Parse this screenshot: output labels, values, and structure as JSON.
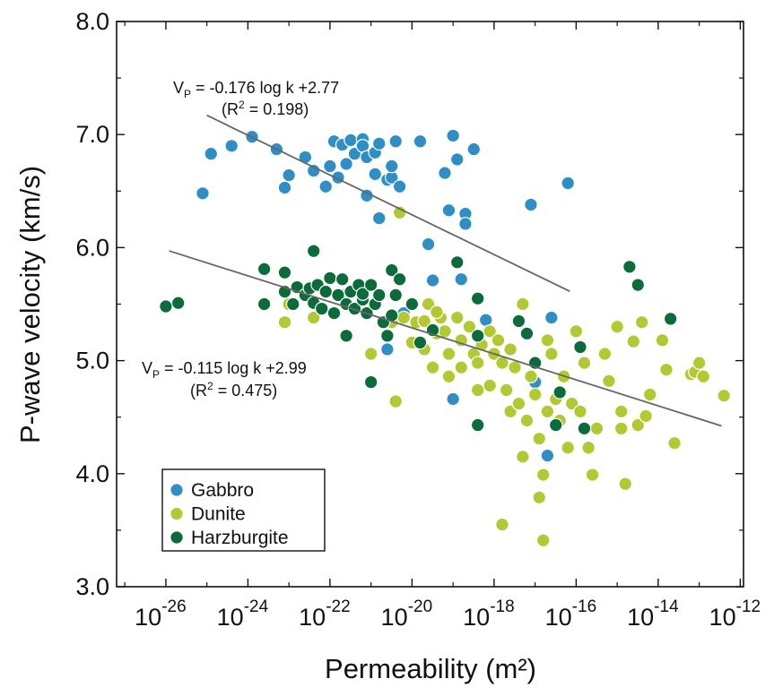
{
  "chart_data": {
    "type": "scatter",
    "x_label": "Permeability (m²)",
    "y_label": "P-wave velocity (km/s)",
    "x_scale": "log",
    "xlim": [
      6.3e-28,
      1.2e-12
    ],
    "ylim": [
      3.0,
      8.0
    ],
    "xticks": [
      {
        "value": 1e-26,
        "label": "10",
        "exponent": "-26"
      },
      {
        "value": 1e-24,
        "label": "10",
        "exponent": "-24"
      },
      {
        "value": 1e-22,
        "label": "10",
        "exponent": "-22"
      },
      {
        "value": 1e-20,
        "label": "10",
        "exponent": "-20"
      },
      {
        "value": 1e-18,
        "label": "10",
        "exponent": "-18"
      },
      {
        "value": 1e-16,
        "label": "10",
        "exponent": "-16"
      },
      {
        "value": 1e-14,
        "label": "10",
        "exponent": "-14"
      },
      {
        "value": 1e-12,
        "label": "10",
        "exponent": "-12"
      }
    ],
    "xminorticks": [
      1e-27,
      1e-25,
      1e-23,
      1e-21,
      1e-19,
      1e-17,
      1e-15,
      1e-13
    ],
    "yticks": [
      {
        "value": 3,
        "label": "3.0"
      },
      {
        "value": 4,
        "label": "4.0"
      },
      {
        "value": 5,
        "label": "5.0"
      },
      {
        "value": 6,
        "label": "6.0"
      },
      {
        "value": 7,
        "label": "7.0"
      },
      {
        "value": 8,
        "label": "8.0"
      }
    ],
    "yminorticks": [
      3.5,
      4.5,
      5.5,
      6.5,
      7.5
    ],
    "legend_position": "lower left",
    "series": [
      {
        "name": "Gabbro",
        "color": "#2f8fc5",
        "x": [
          7.9e-26,
          1.26e-25,
          4e-25,
          1.26e-24,
          5e-24,
          7.9e-24,
          1e-23,
          4e-23,
          2.5e-23,
          7.9e-23,
          1e-22,
          1.26e-22,
          1.58e-22,
          2e-22,
          2.5e-22,
          3.2e-22,
          4e-22,
          6.3e-22,
          6.3e-22,
          7.9e-22,
          1.26e-21,
          7.9e-22,
          1.26e-21,
          1.58e-21,
          2.5e-21,
          3.2e-21,
          3.2e-21,
          4e-21,
          5e-21,
          1.58e-21,
          1.58e-20,
          2.5e-20,
          6.3e-20,
          7.9e-20,
          1e-19,
          1.26e-19,
          2e-19,
          2e-19,
          3.2e-19,
          7.9e-18,
          6.3e-17,
          3.2e-20,
          1.58e-19,
          1e-19,
          1e-17,
          2e-17,
          2.5e-17,
          6.3e-19,
          6.3e-21,
          2.5e-21
        ],
        "values": [
          6.48,
          6.83,
          6.9,
          6.98,
          6.87,
          6.53,
          6.64,
          6.68,
          6.8,
          6.54,
          6.72,
          6.94,
          6.62,
          6.91,
          6.74,
          6.95,
          6.83,
          6.96,
          6.9,
          6.8,
          6.65,
          6.46,
          6.84,
          6.92,
          6.6,
          6.62,
          6.72,
          6.94,
          6.54,
          6.26,
          6.94,
          6.03,
          6.66,
          6.33,
          6.99,
          6.78,
          6.3,
          6.21,
          6.87,
          6.38,
          6.57,
          5.71,
          5.72,
          4.66,
          4.81,
          4.16,
          5.38,
          5.36,
          5.42,
          5.1
        ]
      },
      {
        "name": "Dunite",
        "color": "#b3c934",
        "x": [
          7.9e-24,
          1e-23,
          4e-23,
          6.3e-23,
          2e-22,
          6.3e-22,
          1e-21,
          3.2e-21,
          4e-21,
          5e-21,
          6.3e-21,
          1e-20,
          1.26e-20,
          2e-20,
          2.5e-20,
          3.2e-20,
          4e-20,
          5e-20,
          6.3e-20,
          7.9e-20,
          7.9e-20,
          1.26e-19,
          1.58e-19,
          1.58e-19,
          2.5e-19,
          3.2e-19,
          4e-19,
          5e-19,
          7.9e-19,
          1e-18,
          1.26e-18,
          1.58e-18,
          2e-18,
          2.5e-18,
          2.5e-18,
          3.2e-18,
          5e-18,
          4e-18,
          5e-18,
          6.3e-18,
          7.9e-18,
          1e-17,
          1.26e-17,
          1.26e-17,
          1.58e-17,
          1.58e-17,
          2e-17,
          2e-17,
          2.5e-17,
          3.2e-17,
          4e-17,
          5e-17,
          6.3e-17,
          7.9e-17,
          1e-16,
          1.26e-16,
          1.58e-16,
          2e-16,
          2.5e-16,
          3.2e-16,
          5e-16,
          6.3e-16,
          1e-15,
          1.26e-15,
          1.26e-15,
          1.58e-15,
          2.5e-15,
          3.2e-15,
          4e-15,
          5e-15,
          6.3e-15,
          1.26e-14,
          1.58e-14,
          2.5e-14,
          6.3e-14,
          7.9e-14,
          1e-13,
          1.26e-13,
          4e-13,
          1.58e-18,
          7.9e-19,
          4e-19,
          4e-20,
          2e-20
        ],
        "values": [
          5.34,
          5.5,
          5.38,
          5.46,
          5.58,
          5.61,
          5.06,
          5.34,
          4.64,
          6.31,
          5.38,
          5.16,
          5.34,
          5.1,
          5.5,
          4.94,
          5.24,
          5.38,
          5.26,
          4.86,
          5.06,
          5.38,
          5.18,
          4.94,
          5.3,
          5.06,
          4.98,
          5.14,
          5.26,
          5.06,
          5.18,
          4.98,
          4.74,
          4.55,
          5.1,
          4.94,
          5.5,
          4.62,
          4.15,
          4.47,
          4.86,
          4.7,
          4.31,
          3.79,
          3.99,
          3.41,
          4.55,
          5.18,
          5.06,
          4.66,
          4.47,
          4.86,
          4.23,
          4.62,
          5.26,
          4.55,
          4.98,
          4.23,
          3.99,
          4.4,
          5.06,
          4.82,
          5.3,
          4.55,
          4.4,
          3.91,
          5.17,
          4.43,
          5.34,
          4.51,
          4.7,
          5.18,
          4.92,
          4.27,
          4.88,
          4.9,
          4.98,
          4.86,
          4.69,
          3.55,
          4.78,
          4.74,
          5.43,
          5.35
        ]
      },
      {
        "name": "Harzburgite",
        "color": "#0b6b3a",
        "x": [
          1e-26,
          2e-26,
          2.5e-24,
          2.5e-24,
          7.9e-24,
          7.9e-24,
          1.26e-23,
          1.58e-23,
          2.5e-23,
          3.2e-23,
          4e-23,
          5e-23,
          6.3e-23,
          7.9e-23,
          1e-22,
          1.26e-22,
          1.58e-22,
          2e-22,
          2.5e-22,
          3.2e-22,
          4e-22,
          5e-22,
          6.3e-22,
          6.3e-22,
          7.9e-22,
          1e-21,
          1.26e-21,
          1.58e-21,
          2e-21,
          2.5e-21,
          3.2e-21,
          4e-21,
          3.2e-21,
          5e-21,
          4e-23,
          1e-21,
          2.5e-22,
          1.58e-20,
          3.2e-20,
          1.26e-19,
          4e-19,
          4e-19,
          4e-19,
          4e-18,
          6.3e-18,
          1e-17,
          3.2e-17,
          4e-17,
          1.26e-16,
          1.58e-16,
          2e-15,
          3.2e-15,
          2e-14,
          1e-20
        ],
        "values": [
          5.48,
          5.51,
          5.81,
          5.5,
          5.78,
          5.61,
          5.5,
          5.65,
          5.58,
          5.64,
          5.51,
          5.67,
          5.46,
          5.61,
          5.73,
          5.42,
          5.58,
          5.72,
          5.5,
          5.61,
          5.46,
          5.67,
          5.54,
          5.59,
          5.42,
          5.67,
          5.5,
          5.58,
          5.34,
          5.22,
          5.4,
          5.58,
          5.8,
          5.72,
          5.97,
          4.81,
          5.22,
          5.16,
          5.27,
          5.87,
          5.55,
          4.43,
          5.22,
          5.35,
          5.24,
          4.98,
          4.43,
          4.72,
          5.12,
          4.4,
          5.83,
          5.67,
          5.37,
          5.5
        ]
      }
    ],
    "fit_lines": [
      {
        "x": [
          1e-25,
          7e-17
        ],
        "slope": -0.176,
        "intercept": 2.77,
        "label_v": "V",
        "label_sub": "P",
        "label_rest": " = -0.176 log k +2.77",
        "r2_open": "(R",
        "r2_sup": "2",
        "r2_rest": " = 0.198)"
      },
      {
        "x": [
          1.2e-26,
          3.5e-13
        ],
        "slope": -0.115,
        "intercept": 2.99,
        "label_v": "V",
        "label_sub": "P",
        "label_rest": " = -0.115 log k +2.99",
        "r2_open": "(R",
        "r2_sup": "2",
        "r2_rest": " = 0.475)"
      }
    ]
  }
}
